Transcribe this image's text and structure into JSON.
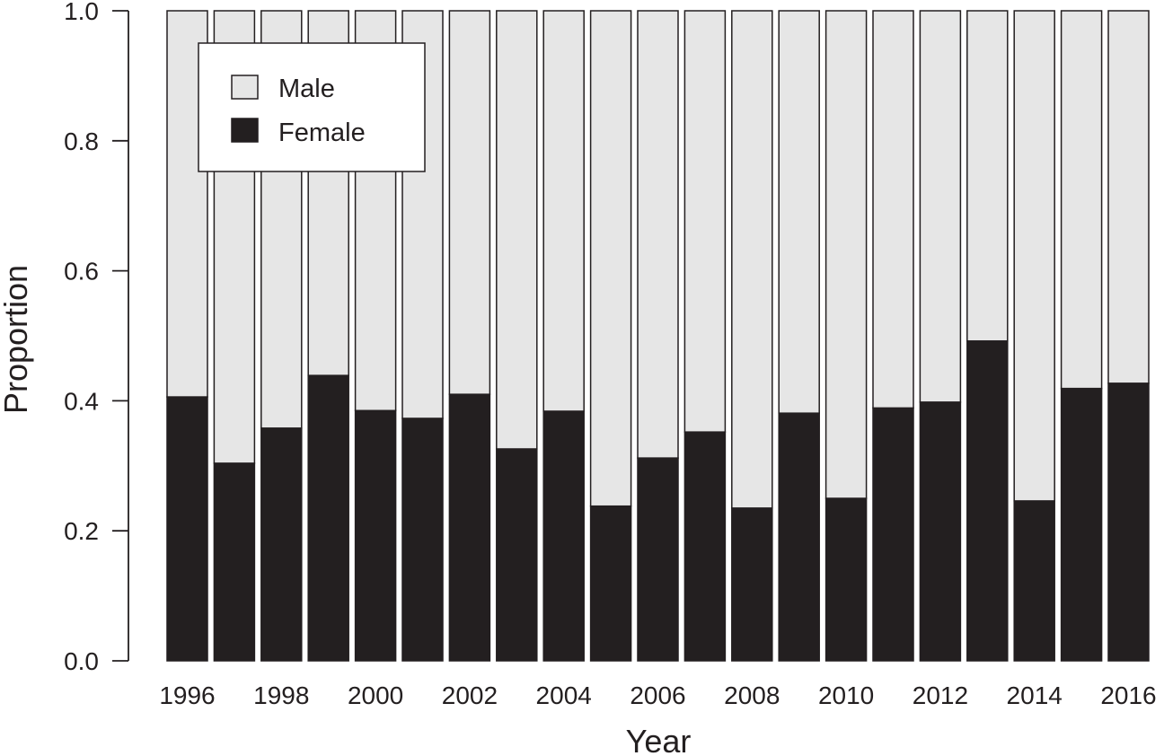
{
  "chart_data": {
    "type": "bar",
    "stacked": true,
    "xlabel": "Year",
    "ylabel": "Proportion",
    "ylim": [
      0,
      1
    ],
    "yticks": [
      "0.0",
      "0.2",
      "0.4",
      "0.6",
      "0.8",
      "1.0"
    ],
    "ytick_values": [
      0,
      0.2,
      0.4,
      0.6,
      0.8,
      1.0
    ],
    "categories": [
      "1996",
      "1997",
      "1998",
      "1999",
      "2000",
      "2001",
      "2002",
      "2003",
      "2004",
      "2005",
      "2006",
      "2007",
      "2008",
      "2009",
      "2010",
      "2011",
      "2012",
      "2013",
      "2014",
      "2015",
      "2016"
    ],
    "xtick_labels": [
      "1996",
      "1998",
      "2000",
      "2002",
      "2004",
      "2006",
      "2008",
      "2010",
      "2012",
      "2014",
      "2016"
    ],
    "series": [
      {
        "name": "Female",
        "color": "#231f20",
        "values": [
          0.406,
          0.304,
          0.358,
          0.439,
          0.385,
          0.373,
          0.41,
          0.326,
          0.384,
          0.238,
          0.312,
          0.352,
          0.235,
          0.381,
          0.25,
          0.389,
          0.398,
          0.492,
          0.246,
          0.419,
          0.427
        ]
      },
      {
        "name": "Male",
        "color": "#e6e6e6",
        "values": [
          0.594,
          0.696,
          0.642,
          0.561,
          0.615,
          0.627,
          0.59,
          0.674,
          0.616,
          0.762,
          0.688,
          0.648,
          0.765,
          0.619,
          0.75,
          0.611,
          0.602,
          0.508,
          0.754,
          0.581,
          0.573
        ]
      }
    ],
    "legend": {
      "position": "top-left",
      "entries": [
        "Male",
        "Female"
      ]
    },
    "grid": false
  }
}
